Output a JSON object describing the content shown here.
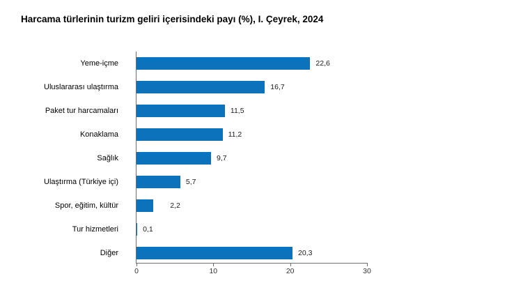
{
  "title": "Harcama türlerinin turizm geliri içerisindeki payı (%), I. Çeyrek, 2024",
  "chart_data": {
    "type": "bar",
    "orientation": "horizontal",
    "title": "Harcama türlerinin turizm geliri içerisindeki payı (%), I. Çeyrek, 2024",
    "categories": [
      "Yeme-içme",
      "Uluslararası ulaştırma",
      "Paket tur harcamaları",
      "Konaklama",
      "Sağlık",
      "Ulaştırma (Türkiye içi)",
      "Spor, eğitim, kültür",
      "Tur hizmetleri",
      "Diğer"
    ],
    "values": [
      22.6,
      16.7,
      11.5,
      11.2,
      9.7,
      5.7,
      2.2,
      0.1,
      20.3
    ],
    "value_labels": [
      "22,6",
      "16,7",
      "11,5",
      "11,2",
      "9,7",
      "5,7",
      "2,2",
      "0,1",
      "20,3"
    ],
    "xlabel": "",
    "ylabel": "",
    "xlim": [
      0,
      30
    ],
    "x_ticks": [
      "0",
      "10",
      "20",
      "30"
    ],
    "x_tick_values": [
      0,
      10,
      20,
      30
    ],
    "grid": false,
    "legend": false,
    "bar_color": "#0d72bc",
    "axis_color": "#6e6e6e",
    "category_label_color": "#000000",
    "value_label_color": "#1a1a1a",
    "tick_label_color": "#333333",
    "background": "#ffffff"
  }
}
